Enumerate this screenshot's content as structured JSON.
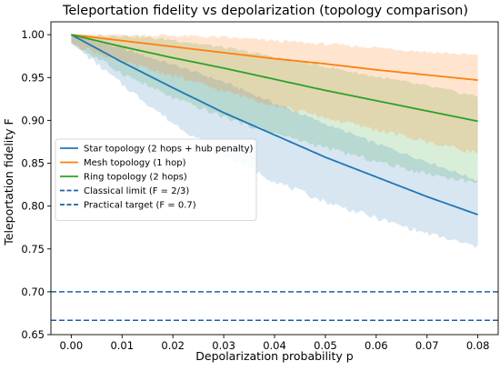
{
  "chart_data": {
    "type": "line",
    "title": "Teleportation fidelity vs depolarization (topology comparison)",
    "xlabel": "Depolarization probability p",
    "ylabel": "Teleportation fidelity F",
    "xlim": [
      -0.004,
      0.084
    ],
    "ylim": [
      0.65,
      1.015
    ],
    "xticks": [
      0.0,
      0.01,
      0.02,
      0.03,
      0.04,
      0.05,
      0.06,
      0.07,
      0.08
    ],
    "xtick_labels": [
      "0.00",
      "0.01",
      "0.02",
      "0.03",
      "0.04",
      "0.05",
      "0.06",
      "0.07",
      "0.08"
    ],
    "yticks": [
      0.65,
      0.7,
      0.75,
      0.8,
      0.85,
      0.9,
      0.95,
      1.0
    ],
    "ytick_labels": [
      "0.65",
      "0.70",
      "0.75",
      "0.80",
      "0.85",
      "0.90",
      "0.95",
      "1.00"
    ],
    "grid": false,
    "legend_position": "center-left",
    "x": [
      0.0,
      0.01,
      0.02,
      0.03,
      0.04,
      0.05,
      0.06,
      0.07,
      0.08
    ],
    "series": [
      {
        "name": "Star topology (2 hops + hub penalty)",
        "color": "#1f77b4",
        "values": [
          1.0,
          0.968,
          0.938,
          0.909,
          0.883,
          0.857,
          0.834,
          0.811,
          0.79
        ],
        "band_lower": [
          0.99,
          0.942,
          0.897,
          0.86,
          0.829,
          0.805,
          0.786,
          0.768,
          0.752
        ],
        "band_upper": [
          1.0,
          0.984,
          0.965,
          0.945,
          0.92,
          0.896,
          0.873,
          0.852,
          0.83
        ]
      },
      {
        "name": "Mesh topology (1 hop)",
        "color": "#ff7f0e",
        "values": [
          1.0,
          0.993,
          0.986,
          0.979,
          0.972,
          0.966,
          0.959,
          0.953,
          0.947
        ],
        "band_lower": [
          0.99,
          0.968,
          0.952,
          0.934,
          0.918,
          0.903,
          0.889,
          0.875,
          0.862
        ],
        "band_upper": [
          1.0,
          1.0,
          0.999,
          0.997,
          0.993,
          0.989,
          0.985,
          0.98,
          0.976
        ]
      },
      {
        "name": "Ring topology (2 hops)",
        "color": "#2ca02c",
        "values": [
          1.0,
          0.986,
          0.973,
          0.961,
          0.948,
          0.935,
          0.923,
          0.911,
          0.899
        ],
        "band_lower": [
          0.99,
          0.955,
          0.926,
          0.904,
          0.885,
          0.868,
          0.852,
          0.838,
          0.827
        ],
        "band_upper": [
          1.0,
          0.999,
          0.994,
          0.985,
          0.974,
          0.963,
          0.951,
          0.94,
          0.928
        ]
      },
      {
        "name": "Classical limit (F = 2/3)",
        "color": "#1f5fa8",
        "dashed": true,
        "constant": 0.6667
      },
      {
        "name": "Practical target (F = 0.7)",
        "color": "#1f5fa8",
        "dashed": true,
        "constant": 0.7
      }
    ]
  }
}
